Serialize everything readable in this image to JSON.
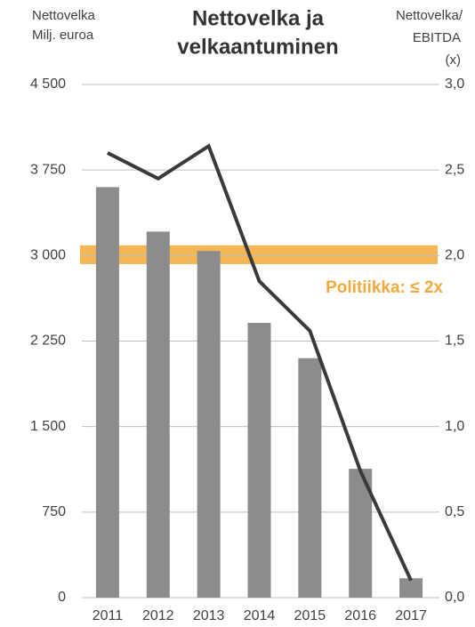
{
  "chart_data": {
    "type": "bar_line",
    "title": [
      "Nettovelka ja",
      "velkaantuminen"
    ],
    "y_label": [
      "Nettovelka",
      "Milj. euroa"
    ],
    "y2_label": [
      "Nettovelka/",
      "EBITDA",
      "(x)"
    ],
    "categories": [
      "2011",
      "2012",
      "2013",
      "2014",
      "2015",
      "2016",
      "2017"
    ],
    "series": [
      {
        "name": "Nettovelka",
        "type": "bar",
        "color": "#8c8c8c",
        "values": [
          3600,
          3210,
          3040,
          2410,
          2100,
          1130,
          170
        ]
      },
      {
        "name": "Nettovelka/EBITDA",
        "type": "line",
        "axis": "y2",
        "color": "#3a3a3a",
        "values": [
          2.6,
          2.45,
          2.64,
          1.85,
          1.56,
          0.74,
          0.1
        ]
      }
    ],
    "ylim": [
      0,
      4500
    ],
    "yticks": [
      {
        "value": 0,
        "label": "0"
      },
      {
        "value": 750,
        "label": "750"
      },
      {
        "value": 1500,
        "label": "1 500"
      },
      {
        "value": 2250,
        "label": "2 250"
      },
      {
        "value": 3000,
        "label": "3 000"
      },
      {
        "value": 3750,
        "label": "3 750"
      },
      {
        "value": 4500,
        "label": "4 500"
      }
    ],
    "y2lim": [
      0,
      3
    ],
    "y2ticks": [
      {
        "value": 0,
        "label": "0,0"
      },
      {
        "value": 0.5,
        "label": "0,5"
      },
      {
        "value": 1,
        "label": "1,0"
      },
      {
        "value": 1.5,
        "label": "1,5"
      },
      {
        "value": 2,
        "label": "2,0"
      },
      {
        "value": 2.5,
        "label": "2,5"
      },
      {
        "value": 3,
        "label": "3,0"
      }
    ],
    "policy_band": {
      "range": [
        1.95,
        2.06
      ],
      "color": "#f5b655",
      "label": "Politiikka: ≤ 2x",
      "label_color": "#f2a93b"
    },
    "grid": true
  }
}
